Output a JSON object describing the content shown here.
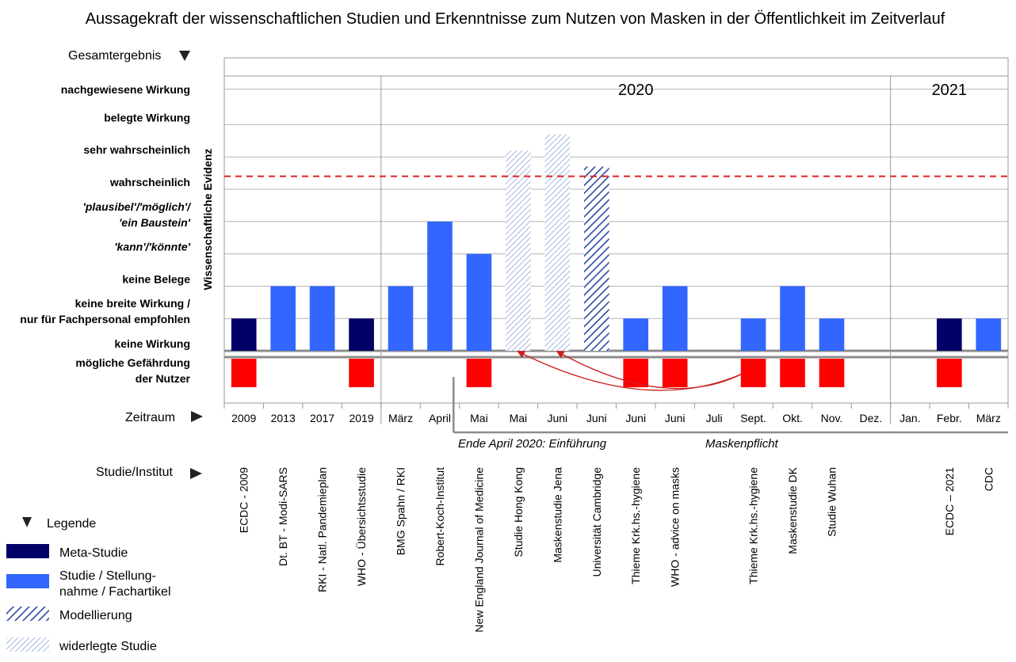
{
  "chart_data": {
    "type": "bar",
    "title": "Aussagekraft der wissenschaftlichen Studien und Erkenntnisse zum Nutzen von Masken in der Öffentlichkeit im Zeitverlauf",
    "ylabel": "Wissenschaftliche Evidenz",
    "y_header": "Gesamtergebnis",
    "x_header": "Zeitraum",
    "study_header": "Studie/Institut",
    "levels": [
      {
        "id": -1,
        "lines": [
          "mögliche Gefährdung",
          "der Nutzer"
        ],
        "italic": false
      },
      {
        "id": 0,
        "lines": [
          "keine Wirkung"
        ],
        "italic": false
      },
      {
        "id": 1,
        "lines": [
          "keine breite Wirkung /",
          "nur für Fachpersonal empfohlen"
        ],
        "italic": false
      },
      {
        "id": 2,
        "lines": [
          "keine Belege"
        ],
        "italic": false
      },
      {
        "id": 3,
        "lines": [
          "'kann'/'könnte'"
        ],
        "italic": true
      },
      {
        "id": 4,
        "lines": [
          "'plausibel'/'möglich'/",
          "'ein Baustein'"
        ],
        "italic": true
      },
      {
        "id": 5,
        "lines": [
          "wahrscheinlich"
        ],
        "italic": false
      },
      {
        "id": 6,
        "lines": [
          "sehr wahrscheinlich"
        ],
        "italic": false
      },
      {
        "id": 7,
        "lines": [
          "belegte Wirkung"
        ],
        "italic": false
      },
      {
        "id": 8,
        "lines": [
          "nachgewiesene Wirkung"
        ],
        "italic": false
      }
    ],
    "year_groups": [
      {
        "label": "2020",
        "from": 4,
        "to": 16
      },
      {
        "label": "2021",
        "from": 17,
        "to": 19
      }
    ],
    "threshold_level": 5.4,
    "columns": [
      {
        "period": "2009",
        "study": "ECDC - 2009",
        "value": 1,
        "kind": "meta",
        "hazard": true
      },
      {
        "period": "2013",
        "study": "Dt. BT - Modi-SARS",
        "value": 2,
        "kind": "study",
        "hazard": false
      },
      {
        "period": "2017",
        "study": "RKI - Natl. Pandemieplan",
        "value": 2,
        "kind": "study",
        "hazard": false
      },
      {
        "period": "2019",
        "study": "WHO - Übersichtsstudie",
        "value": 1,
        "kind": "meta",
        "hazard": true
      },
      {
        "period": "März",
        "study": "BMG Spahn / RKI",
        "value": 2,
        "kind": "study",
        "hazard": false
      },
      {
        "period": "April",
        "study": "Robert-Koch-Institut",
        "value": 4,
        "kind": "study",
        "hazard": false
      },
      {
        "period": "Mai",
        "study": "New England Journal of Medicine",
        "value": 3,
        "kind": "study",
        "hazard": true
      },
      {
        "period": "Mai",
        "study": "Studie Hong Kong",
        "value": 6.2,
        "kind": "refuted",
        "hazard": false
      },
      {
        "period": "Juni",
        "study": "Maskenstudie Jena",
        "value": 6.7,
        "kind": "refuted",
        "hazard": false
      },
      {
        "period": "Juni",
        "study": "Universität Cambridge",
        "value": 5.7,
        "kind": "modelling",
        "hazard": false
      },
      {
        "period": "Juni",
        "study": "Thieme Krk.hs.-hygiene",
        "value": 1,
        "kind": "study",
        "hazard": true
      },
      {
        "period": "Juni",
        "study": "WHO - advice on masks",
        "value": 2,
        "kind": "study",
        "hazard": true
      },
      {
        "period": "Juli",
        "study": "",
        "value": null,
        "kind": "none",
        "hazard": false
      },
      {
        "period": "Sept.",
        "study": "Thieme Krk.hs.-hygiene",
        "value": 1,
        "kind": "study",
        "hazard": true
      },
      {
        "period": "Okt.",
        "study": "Maskenstudie DK",
        "value": 2,
        "kind": "study",
        "hazard": true
      },
      {
        "period": "Nov.",
        "study": "Studie Wuhan",
        "value": 1,
        "kind": "study",
        "hazard": true
      },
      {
        "period": "Dez.",
        "study": "",
        "value": null,
        "kind": "none",
        "hazard": false
      },
      {
        "period": "Jan.",
        "study": "",
        "value": null,
        "kind": "none",
        "hazard": false
      },
      {
        "period": "Febr.",
        "study": "ECDC – 2021",
        "value": 1,
        "kind": "meta",
        "hazard": true
      },
      {
        "period": "März",
        "study": "CDC",
        "value": 1,
        "kind": "study",
        "hazard": false
      }
    ],
    "arrows": [
      {
        "from": 13,
        "to": 7
      },
      {
        "from": 13,
        "to": 8
      }
    ],
    "mandate": {
      "label_left": "Ende April 2020:  Einführung",
      "label_right": "Maskenpflicht"
    },
    "legend": {
      "header": "Legende",
      "items": [
        {
          "kind": "meta",
          "lines": [
            "Meta-Studie"
          ]
        },
        {
          "kind": "study",
          "lines": [
            "Studie / Stellung-",
            "nahme / Fachartikel"
          ]
        },
        {
          "kind": "modelling",
          "lines": [
            "Modellierung"
          ]
        },
        {
          "kind": "refuted",
          "lines": [
            "widerlegte Studie"
          ]
        }
      ]
    },
    "colors": {
      "meta": "#000066",
      "study": "#3366ff",
      "modelling": "#2a4aa8",
      "refuted": "#8ea5d8",
      "hazard": "#ff0000",
      "threshold": "#e02020",
      "arrow": "#cc2222",
      "grid": "#9a9a9a"
    }
  }
}
